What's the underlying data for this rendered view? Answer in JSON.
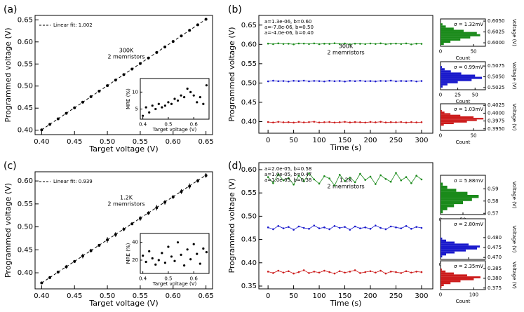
{
  "chart_data": [
    {
      "type": "scatter",
      "panel": "(a)",
      "xlabel": "Target voltage (V)",
      "ylabel": "Programmed voltage (V)",
      "color": "#000000",
      "annotations": [
        "300K",
        "2 memristors"
      ],
      "x": [
        0.4,
        0.4125,
        0.425,
        0.4375,
        0.45,
        0.4625,
        0.475,
        0.4875,
        0.5,
        0.5125,
        0.525,
        0.5375,
        0.55,
        0.5625,
        0.575,
        0.5875,
        0.6,
        0.6125,
        0.625,
        0.6375,
        0.65
      ],
      "values": [
        0.4008,
        0.4133,
        0.4258,
        0.4383,
        0.4508,
        0.4634,
        0.4759,
        0.4884,
        0.5009,
        0.5134,
        0.526,
        0.5385,
        0.551,
        0.5635,
        0.5761,
        0.5886,
        0.6011,
        0.6136,
        0.6262,
        0.6387,
        0.6512
      ],
      "fit": {
        "label": "Linear fit: 1.002",
        "x": [
          0.4,
          0.65
        ],
        "values": [
          0.4008,
          0.6513
        ]
      },
      "xlim": [
        0.39,
        0.66
      ],
      "xticks": [
        {
          "value": 0.4,
          "label": "0.40"
        },
        0.45,
        {
          "value": 0.5,
          "label": "0.50"
        },
        0.55,
        {
          "value": 0.6,
          "label": "0.60"
        },
        0.65
      ],
      "ylim": [
        0.39,
        0.66
      ],
      "yticks": [
        {
          "value": 0.4,
          "label": "0.40"
        },
        0.45,
        {
          "value": 0.5,
          "label": "0.50"
        },
        0.55,
        {
          "value": 0.6,
          "label": "0.60"
        },
        0.65
      ]
    },
    {
      "type": "scatter",
      "xlabel": "Target voltage (V)",
      "ylabel": "MRE (%)",
      "color": "#000000",
      "x": [
        0.4,
        0.4125,
        0.425,
        0.4375,
        0.45,
        0.4625,
        0.475,
        0.4875,
        0.5,
        0.5125,
        0.525,
        0.5375,
        0.55,
        0.5625,
        0.575,
        0.5875,
        0.6,
        0.6125,
        0.625,
        0.6375,
        0.65
      ],
      "values": [
        3,
        5.5,
        4,
        6,
        5,
        6.5,
        5.5,
        6,
        7,
        6.5,
        8,
        7.5,
        9,
        8.5,
        11,
        10,
        9,
        7,
        8.5,
        6.5,
        12
      ],
      "xlim": [
        0.39,
        0.66
      ],
      "xticks": [
        0.4,
        0.5,
        0.6
      ],
      "ylim": [
        2,
        14
      ],
      "yticks": [
        5,
        10
      ]
    },
    {
      "type": "line",
      "panel": "(b)",
      "xlabel": "Time (s)",
      "ylabel": "Programmed voltage (V)",
      "annotations": [
        "300K",
        "2 memristors"
      ],
      "x": [
        0,
        10,
        20,
        30,
        40,
        50,
        60,
        70,
        80,
        90,
        100,
        110,
        120,
        130,
        140,
        150,
        160,
        170,
        180,
        190,
        200,
        210,
        220,
        230,
        240,
        250,
        260,
        270,
        280,
        290,
        300
      ],
      "series": [
        {
          "name": "a=1.3e-06, b=0.60",
          "color": "#1a8a1a",
          "values": [
            0.602,
            0.6007,
            0.6027,
            0.6012,
            0.6017,
            0.6002,
            0.6024,
            0.6021,
            0.601,
            0.6025,
            0.6006,
            0.6018,
            0.6013,
            0.6029,
            0.6009,
            0.6022,
            0.6003,
            0.6019,
            0.6015,
            0.6008,
            0.6024,
            0.6012,
            0.6027,
            0.6005,
            0.6016,
            0.6021,
            0.601,
            0.6025,
            0.6001,
            0.6018,
            0.6014
          ]
        },
        {
          "name": "a=-7.8e-06, b=0.50",
          "color": "#1a1acc",
          "values": [
            0.5043,
            0.506,
            0.5047,
            0.5052,
            0.5039,
            0.5057,
            0.5049,
            0.5061,
            0.5044,
            0.5054,
            0.505,
            0.5041,
            0.5058,
            0.5046,
            0.5053,
            0.504,
            0.5056,
            0.5048,
            0.5059,
            0.5045,
            0.5051,
            0.5042,
            0.5055,
            0.505,
            0.5062,
            0.5044,
            0.5053,
            0.5047,
            0.5057,
            0.5041,
            0.5052
          ]
        },
        {
          "name": "a=-4.0e-06, b=0.40",
          "color": "#cc1a1a",
          "values": [
            0.399,
            0.3978,
            0.3995,
            0.3983,
            0.3987,
            0.3975,
            0.3993,
            0.3981,
            0.3988,
            0.3997,
            0.3979,
            0.3986,
            0.3991,
            0.3976,
            0.3984,
            0.3994,
            0.398,
            0.3989,
            0.3985,
            0.3977,
            0.3992,
            0.3982,
            0.3996,
            0.3979,
            0.3987,
            0.3983,
            0.399,
            0.3975,
            0.3988,
            0.3981,
            0.3986
          ]
        }
      ],
      "xlim": [
        -18,
        322
      ],
      "xticks": [
        0,
        50,
        100,
        150,
        200,
        250,
        300
      ],
      "ylim": [
        0.37,
        0.675
      ],
      "yticks": [
        {
          "value": 0.4,
          "label": "0.40"
        },
        0.45,
        {
          "value": 0.5,
          "label": "0.50"
        },
        0.55,
        {
          "value": 0.6,
          "label": "0.60"
        },
        0.65
      ]
    },
    {
      "type": "histogram",
      "xlabel": "Count",
      "ylabel": "Voltage (V)",
      "color": "#1a8a1a",
      "annotation": "σ = 1.32mV",
      "bins": [
        0.5995,
        0.6,
        0.6005,
        0.601,
        0.6015,
        0.602,
        0.6025,
        0.603,
        0.6035,
        0.604,
        0.6045
      ],
      "counts": [
        5,
        15,
        30,
        45,
        60,
        55,
        35,
        20,
        8,
        3
      ],
      "xlim": [
        0,
        68
      ],
      "xticks": [
        0,
        50
      ],
      "ylim": [
        0.5992,
        0.6055
      ],
      "yticks": [
        {
          "value": 0.6,
          "label": "0.6000"
        },
        0.6025,
        {
          "value": 0.605,
          "label": "0.6050"
        }
      ]
    },
    {
      "type": "histogram",
      "xlabel": "Count",
      "ylabel": "Voltage (V)",
      "color": "#1a1acc",
      "annotation": "σ = 0.99mV",
      "bins": [
        0.5025,
        0.503,
        0.5035,
        0.504,
        0.5045,
        0.505,
        0.5055,
        0.506,
        0.5065,
        0.507,
        0.5075
      ],
      "counts": [
        3,
        10,
        25,
        45,
        60,
        50,
        30,
        15,
        6,
        2
      ],
      "xlim": [
        0,
        65
      ],
      "xticks": [
        0,
        25,
        50
      ],
      "ylim": [
        0.502,
        0.5085
      ],
      "yticks": [
        0.5025,
        {
          "value": 0.505,
          "label": "0.5050"
        },
        0.5075
      ]
    },
    {
      "type": "histogram",
      "xlabel": "Count",
      "ylabel": "Voltage (V)",
      "color": "#cc1a1a",
      "annotation": "σ = 1.03mV",
      "bins": [
        0.396,
        0.3965,
        0.397,
        0.3975,
        0.398,
        0.3985,
        0.399,
        0.3995,
        0.4,
        0.4005,
        0.401
      ],
      "counts": [
        5,
        20,
        40,
        55,
        65,
        50,
        30,
        15,
        6,
        2
      ],
      "xlim": [
        0,
        68
      ],
      "xticks": [
        0,
        50
      ],
      "ylim": [
        0.3945,
        0.403
      ],
      "yticks": [
        {
          "value": 0.395,
          "label": "0.3950"
        },
        0.3975,
        {
          "value": 0.4,
          "label": "0.4000"
        },
        0.4025
      ]
    },
    {
      "type": "scatter",
      "panel": "(c)",
      "xlabel": "Target voltage (V)",
      "ylabel": "Programmed voltage (V)",
      "color": "#000000",
      "annotations": [
        "1.2K",
        "2 memristors"
      ],
      "x": [
        0.4,
        0.4125,
        0.425,
        0.4375,
        0.45,
        0.4625,
        0.475,
        0.4875,
        0.5,
        0.5125,
        0.525,
        0.5375,
        0.55,
        0.5625,
        0.575,
        0.5875,
        0.6,
        0.6125,
        0.625,
        0.6375,
        0.65
      ],
      "values": [
        0.378,
        0.3897,
        0.4014,
        0.4131,
        0.4248,
        0.4365,
        0.4482,
        0.4599,
        0.4716,
        0.4833,
        0.495,
        0.5067,
        0.5184,
        0.5301,
        0.5418,
        0.5535,
        0.5652,
        0.5769,
        0.5886,
        0.6003,
        0.612
      ],
      "errors": [
        0.002,
        0.003,
        0.002,
        0.004,
        0.003,
        0.005,
        0.004,
        0.003,
        0.006,
        0.005,
        0.004,
        0.003,
        0.005,
        0.004,
        0.006,
        0.005,
        0.004,
        0.005,
        0.006,
        0.004,
        0.005
      ],
      "fit": {
        "label": "Linear fit: 0.939",
        "x": [
          0.4,
          0.65
        ],
        "values": [
          0.378,
          0.6128
        ]
      },
      "xlim": [
        0.39,
        0.66
      ],
      "xticks": [
        {
          "value": 0.4,
          "label": "0.40"
        },
        0.45,
        {
          "value": 0.5,
          "label": "0.50"
        },
        0.55,
        {
          "value": 0.6,
          "label": "0.60"
        },
        0.65
      ],
      "ylim": [
        0.365,
        0.62
      ],
      "yticks": [
        {
          "value": 0.4,
          "label": "0.40"
        },
        0.45,
        {
          "value": 0.5,
          "label": "0.50"
        },
        0.55,
        {
          "value": 0.6,
          "label": "0.60"
        }
      ]
    },
    {
      "type": "scatter",
      "xlabel": "Target voltage (V)",
      "ylabel": "MRE (%)",
      "color": "#000000",
      "x": [
        0.4,
        0.4125,
        0.425,
        0.4375,
        0.45,
        0.4625,
        0.475,
        0.4875,
        0.5,
        0.5125,
        0.525,
        0.5375,
        0.55,
        0.5625,
        0.575,
        0.5875,
        0.6,
        0.6125,
        0.625,
        0.6375,
        0.65
      ],
      "values": [
        25,
        18,
        30,
        22,
        15,
        20,
        28,
        17,
        35,
        24,
        19,
        40,
        26,
        14,
        32,
        21,
        38,
        27,
        16,
        33,
        29
      ],
      "xlim": [
        0.39,
        0.66
      ],
      "xticks": [
        0.4,
        0.5,
        0.6
      ],
      "ylim": [
        5,
        50
      ],
      "yticks": [
        20,
        40
      ]
    },
    {
      "type": "line",
      "panel": "(d)",
      "xlabel": "Time (s)",
      "ylabel": "Programmed voltage (V)",
      "annotations": [
        "1.2K",
        "2 memristors"
      ],
      "x": [
        0,
        10,
        20,
        30,
        40,
        50,
        60,
        70,
        80,
        90,
        100,
        110,
        120,
        130,
        140,
        150,
        160,
        170,
        180,
        190,
        200,
        210,
        220,
        230,
        240,
        250,
        260,
        270,
        280,
        290,
        300
      ],
      "series": [
        {
          "name": "a=2.0e-05, b=0.58",
          "color": "#1a8a1a",
          "values": [
            0.584,
            0.571,
            0.59,
            0.577,
            0.582,
            0.568,
            0.587,
            0.575,
            0.592,
            0.579,
            0.57,
            0.586,
            0.581,
            0.566,
            0.589,
            0.576,
            0.583,
            0.573,
            0.591,
            0.578,
            0.585,
            0.569,
            0.588,
            0.58,
            0.574,
            0.593,
            0.577,
            0.584,
            0.571,
            0.587,
            0.579
          ]
        },
        {
          "name": "a=1.0e-05, b=0.47",
          "color": "#1a1acc",
          "values": [
            0.476,
            0.472,
            0.479,
            0.474,
            0.477,
            0.471,
            0.478,
            0.475,
            0.473,
            0.48,
            0.474,
            0.476,
            0.472,
            0.479,
            0.475,
            0.477,
            0.471,
            0.478,
            0.474,
            0.476,
            0.473,
            0.48,
            0.475,
            0.472,
            0.478,
            0.476,
            0.474,
            0.479,
            0.473,
            0.477,
            0.475
          ]
        },
        {
          "name": "a=1.0e-05, b=0.38",
          "color": "#cc1a1a",
          "values": [
            0.381,
            0.378,
            0.383,
            0.379,
            0.382,
            0.377,
            0.38,
            0.384,
            0.378,
            0.381,
            0.379,
            0.383,
            0.38,
            0.377,
            0.382,
            0.379,
            0.381,
            0.384,
            0.378,
            0.38,
            0.382,
            0.379,
            0.383,
            0.377,
            0.381,
            0.38,
            0.378,
            0.382,
            0.379,
            0.381,
            0.38
          ]
        }
      ],
      "xlim": [
        -18,
        322
      ],
      "xticks": [
        0,
        50,
        100,
        150,
        200,
        250,
        300
      ],
      "ylim": [
        0.344,
        0.615
      ],
      "yticks": [
        0.35,
        {
          "value": 0.4,
          "label": "0.40"
        },
        0.45,
        {
          "value": 0.5,
          "label": "0.50"
        },
        0.55,
        {
          "value": 0.6,
          "label": "0.60"
        }
      ]
    },
    {
      "type": "histogram",
      "xlabel": "Count",
      "ylabel": "Voltage (V)",
      "color": "#1a8a1a",
      "annotation": "σ = 5.88mV",
      "bins": [
        0.57,
        0.5725,
        0.575,
        0.5775,
        0.58,
        0.5825,
        0.585,
        0.5875,
        0.59,
        0.5925,
        0.595
      ],
      "counts": [
        5,
        15,
        30,
        50,
        70,
        85,
        60,
        35,
        15,
        5
      ],
      "xlim": [
        0,
        100
      ],
      "xticks": [
        0,
        50
      ],
      "ylim": [
        0.569,
        0.601
      ],
      "yticks": [
        0.57,
        0.58,
        0.59
      ]
    },
    {
      "type": "histogram",
      "xlabel": "Count",
      "ylabel": "Voltage (V)",
      "color": "#1a1acc",
      "annotation": "σ = 2.80mV",
      "bins": [
        0.47,
        0.471,
        0.472,
        0.473,
        0.474,
        0.475,
        0.476,
        0.477,
        0.478,
        0.479,
        0.48
      ],
      "counts": [
        3,
        10,
        25,
        45,
        65,
        70,
        50,
        25,
        10,
        3
      ],
      "xlim": [
        0,
        80
      ],
      "xticks": [
        0,
        50
      ],
      "ylim": [
        0.469,
        0.4895
      ],
      "yticks": [
        {
          "value": 0.47,
          "label": "0.470"
        },
        0.475,
        {
          "value": 0.48,
          "label": "0.480"
        }
      ]
    },
    {
      "type": "histogram",
      "xlabel": "Count",
      "ylabel": "Voltage (V)",
      "color": "#cc1a1a",
      "annotation": "σ = 2.35mV",
      "bins": [
        0.375,
        0.376,
        0.377,
        0.378,
        0.379,
        0.38,
        0.381,
        0.382,
        0.383,
        0.384,
        0.385
      ],
      "counts": [
        3,
        10,
        30,
        60,
        100,
        120,
        80,
        40,
        15,
        4
      ],
      "xlim": [
        0,
        135
      ],
      "xticks": [
        0,
        100
      ],
      "ylim": [
        0.3742,
        0.389
      ],
      "yticks": [
        0.375,
        {
          "value": 0.38,
          "label": "0.380"
        },
        0.385
      ]
    }
  ]
}
